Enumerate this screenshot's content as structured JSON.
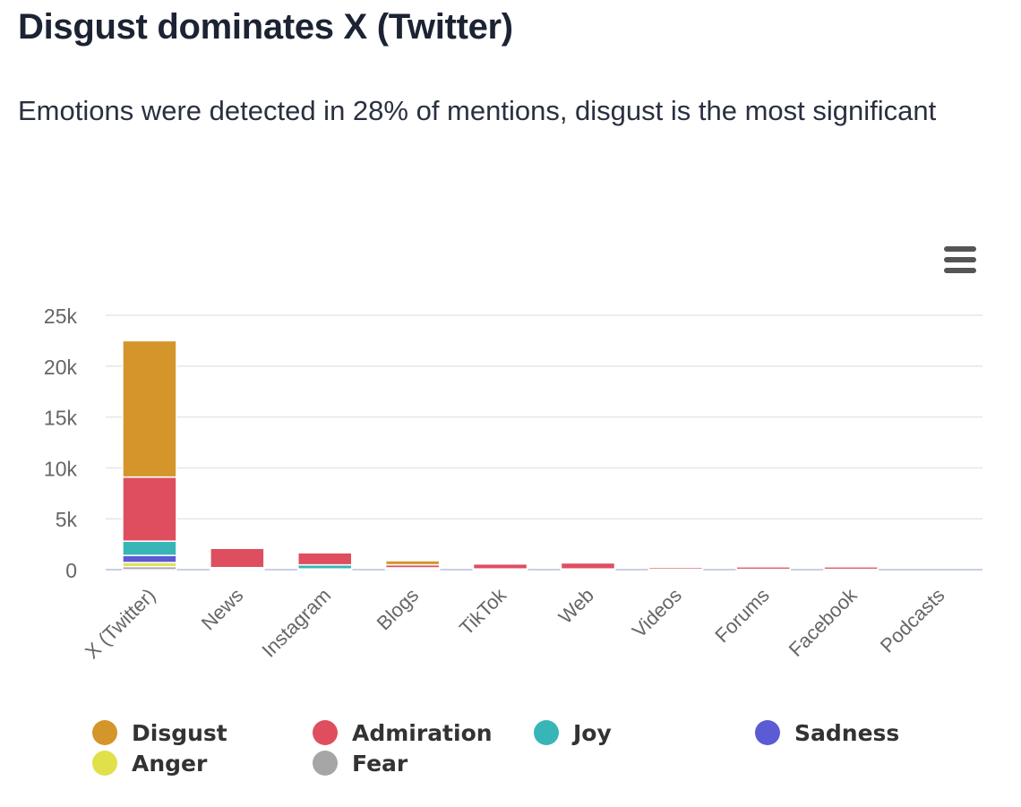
{
  "header": {
    "title": "Disgust dominates X (Twitter)",
    "subtitle": "Emotions were detected in 28% of mentions, disgust is the most significant"
  },
  "menu": {
    "icon": "hamburger-menu-icon"
  },
  "chart_data": {
    "type": "bar",
    "stacked": true,
    "title": "",
    "xlabel": "",
    "ylabel": "",
    "ylim": [
      0,
      25000
    ],
    "yticks": [
      0,
      5000,
      10000,
      15000,
      20000,
      25000
    ],
    "ytick_labels": [
      "0",
      "5k",
      "10k",
      "15k",
      "20k",
      "25k"
    ],
    "grid": true,
    "legend_position": "bottom",
    "categories": [
      "X (Twitter)",
      "News",
      "Instagram",
      "Blogs",
      "TikTok",
      "Web",
      "Videos",
      "Forums",
      "Facebook",
      "Podcasts"
    ],
    "series": [
      {
        "name": "Fear",
        "color": "#a6a6a6",
        "values": [
          300,
          40,
          20,
          40,
          15,
          15,
          10,
          5,
          5,
          0
        ]
      },
      {
        "name": "Anger",
        "color": "#e1e04b",
        "values": [
          400,
          40,
          20,
          40,
          15,
          15,
          10,
          5,
          5,
          0
        ]
      },
      {
        "name": "Sadness",
        "color": "#5b5bd6",
        "values": [
          700,
          60,
          30,
          60,
          20,
          20,
          10,
          10,
          10,
          0
        ]
      },
      {
        "name": "Joy",
        "color": "#38b6b7",
        "values": [
          1400,
          60,
          400,
          40,
          20,
          20,
          20,
          10,
          10,
          0
        ]
      },
      {
        "name": "Admiration",
        "color": "#df4e5f",
        "values": [
          6300,
          1900,
          1200,
          300,
          500,
          600,
          200,
          260,
          270,
          0
        ]
      },
      {
        "name": "Disgust",
        "color": "#d4962a",
        "values": [
          13400,
          100,
          80,
          400,
          60,
          60,
          30,
          30,
          20,
          0
        ]
      }
    ],
    "legend_order": [
      "Disgust",
      "Admiration",
      "Joy",
      "Sadness",
      "Anger",
      "Fear"
    ]
  }
}
